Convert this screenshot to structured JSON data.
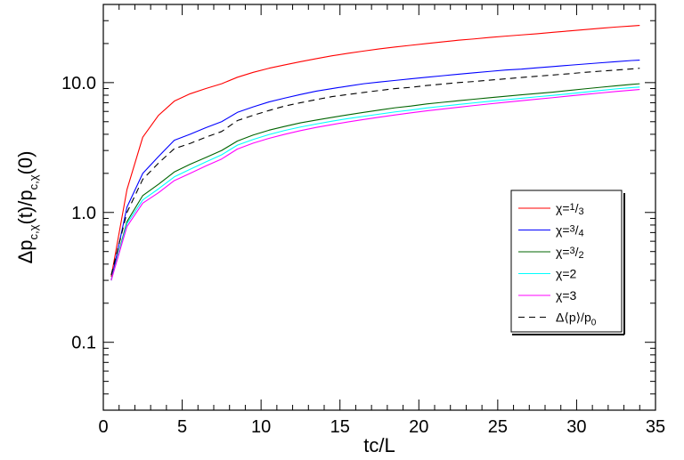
{
  "chart_data": {
    "type": "line",
    "xlabel": "tc/L",
    "ylabel": "Δp_{c,χ}(t)/p_{c,χ}(0)",
    "ylabel_parts": {
      "delta": "Δp",
      "sub1": "c,χ",
      "mid": "(t)/p",
      "sub2": "c,χ",
      "end": "(0)"
    },
    "xlim": [
      0,
      35
    ],
    "ylim": [
      0.03,
      40
    ],
    "yscale": "log",
    "x_ticks": [
      0,
      5,
      10,
      15,
      20,
      25,
      30,
      35
    ],
    "x_tick_labels": [
      "0",
      "5",
      "10",
      "15",
      "20",
      "25",
      "30",
      "35"
    ],
    "y_ticks": [
      0.1,
      1.0,
      10.0
    ],
    "y_tick_labels": [
      "0.1",
      "1.0",
      "10.0"
    ],
    "grid": false,
    "legend_position": "lower-right",
    "x": [
      0.5,
      1.5,
      2.5,
      3.5,
      4.5,
      5.5,
      6.5,
      7.5,
      8.5,
      9.5,
      10.5,
      11.5,
      12.5,
      13.5,
      14.5,
      15.5,
      16.5,
      17.5,
      18.5,
      19.5,
      20.5,
      21.5,
      22.5,
      23.5,
      24.5,
      25.5,
      26.5,
      27.5,
      28.5,
      29.5,
      30.5,
      31.5,
      32.5,
      33.5,
      34.0
    ],
    "series": [
      {
        "name": "χ=1/3",
        "label_parts": {
          "pre": "χ=",
          "num": "1",
          "den": "3"
        },
        "color": "#ff0000",
        "dash": "solid",
        "values": [
          0.32,
          1.5,
          3.8,
          5.6,
          7.2,
          8.2,
          9.0,
          9.8,
          11.0,
          12.0,
          12.9,
          13.7,
          14.5,
          15.3,
          16.1,
          16.8,
          17.5,
          18.2,
          18.8,
          19.4,
          20.0,
          20.6,
          21.2,
          21.7,
          22.3,
          22.8,
          23.3,
          23.8,
          24.4,
          25.0,
          25.6,
          26.2,
          26.8,
          27.3,
          27.6
        ]
      },
      {
        "name": "χ=3/4",
        "label_parts": {
          "pre": "χ=",
          "num": "3",
          "den": "4"
        },
        "color": "#0000ff",
        "dash": "solid",
        "values": [
          0.3,
          1.1,
          2.0,
          2.7,
          3.6,
          4.0,
          4.5,
          5.0,
          5.9,
          6.5,
          7.1,
          7.6,
          8.1,
          8.6,
          9.0,
          9.4,
          9.8,
          10.1,
          10.4,
          10.7,
          11.0,
          11.3,
          11.6,
          11.9,
          12.2,
          12.5,
          12.7,
          13.0,
          13.3,
          13.6,
          13.9,
          14.2,
          14.5,
          14.8,
          14.9
        ]
      },
      {
        "name": "χ=3/2",
        "label_parts": {
          "pre": "χ=",
          "num": "3",
          "den": "2"
        },
        "color": "#006400",
        "dash": "solid",
        "values": [
          0.3,
          0.85,
          1.35,
          1.65,
          2.05,
          2.35,
          2.65,
          3.0,
          3.55,
          3.95,
          4.3,
          4.6,
          4.9,
          5.15,
          5.4,
          5.65,
          5.9,
          6.15,
          6.4,
          6.6,
          6.85,
          7.05,
          7.25,
          7.45,
          7.65,
          7.85,
          8.05,
          8.25,
          8.45,
          8.7,
          8.95,
          9.2,
          9.45,
          9.7,
          9.8
        ]
      },
      {
        "name": "χ=2",
        "label_parts": {
          "pre": "χ=2",
          "num": "",
          "den": ""
        },
        "color": "#00ffff",
        "dash": "solid",
        "values": [
          0.3,
          0.82,
          1.25,
          1.52,
          1.88,
          2.15,
          2.45,
          2.78,
          3.3,
          3.65,
          3.98,
          4.28,
          4.55,
          4.8,
          5.05,
          5.28,
          5.5,
          5.72,
          5.95,
          6.15,
          6.38,
          6.58,
          6.78,
          6.98,
          7.18,
          7.38,
          7.58,
          7.78,
          7.98,
          8.2,
          8.45,
          8.7,
          8.95,
          9.15,
          9.25
        ]
      },
      {
        "name": "χ=3",
        "label_parts": {
          "pre": "χ=3",
          "num": "",
          "den": ""
        },
        "color": "#ff00ff",
        "dash": "solid",
        "values": [
          0.3,
          0.78,
          1.18,
          1.42,
          1.76,
          2.0,
          2.28,
          2.58,
          3.08,
          3.42,
          3.72,
          4.0,
          4.27,
          4.52,
          4.75,
          4.98,
          5.2,
          5.42,
          5.64,
          5.85,
          6.06,
          6.26,
          6.46,
          6.66,
          6.86,
          7.06,
          7.26,
          7.46,
          7.66,
          7.88,
          8.1,
          8.32,
          8.55,
          8.75,
          8.85
        ]
      },
      {
        "name": "Δ⟨p⟩/p0",
        "label_parts": {
          "pre": "Δ⟨p⟩/p",
          "sub": "0"
        },
        "color": "#000000",
        "dash": "dashed",
        "values": [
          0.33,
          1.0,
          1.8,
          2.4,
          3.1,
          3.4,
          3.8,
          4.2,
          5.1,
          5.6,
          6.1,
          6.6,
          7.0,
          7.4,
          7.8,
          8.1,
          8.4,
          8.7,
          9.0,
          9.2,
          9.5,
          9.75,
          10.0,
          10.2,
          10.45,
          10.7,
          10.95,
          11.2,
          11.45,
          11.7,
          12.0,
          12.25,
          12.5,
          12.75,
          12.9
        ]
      }
    ]
  }
}
